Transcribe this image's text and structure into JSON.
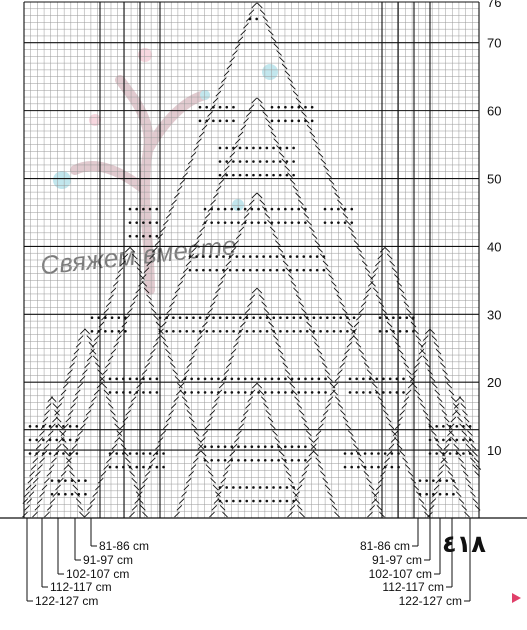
{
  "chart": {
    "type": "knitting-chart",
    "rows_total": 76,
    "row_labels": [
      "76",
      "70",
      "60",
      "50",
      "40",
      "30",
      "20",
      "10"
    ],
    "row_label_values": [
      76,
      70,
      60,
      50,
      40,
      30,
      20,
      10
    ],
    "peak_row": 76,
    "major_grid_every_rows": 10
  },
  "sizes": {
    "left": [
      "81-86 cm",
      "91-97 cm",
      "102-107 cm",
      "112-117 cm",
      "122-127 cm"
    ],
    "right": [
      "81-86 cm",
      "91-97 cm",
      "102-107 cm",
      "112-117 cm",
      "122-127 cm"
    ]
  },
  "handwritten_note": "٤١٨",
  "watermark": {
    "text": "Свяжем вместе",
    "colors": {
      "trunk": "#c9a0a8",
      "accent_blue": "#8fd3e0",
      "accent_pink": "#f2b8c6"
    }
  },
  "colors": {
    "grid_minor": "#9a9a9a",
    "grid_major": "#111111",
    "symbols": "#111111",
    "arrow_marker": "#e0406a"
  }
}
